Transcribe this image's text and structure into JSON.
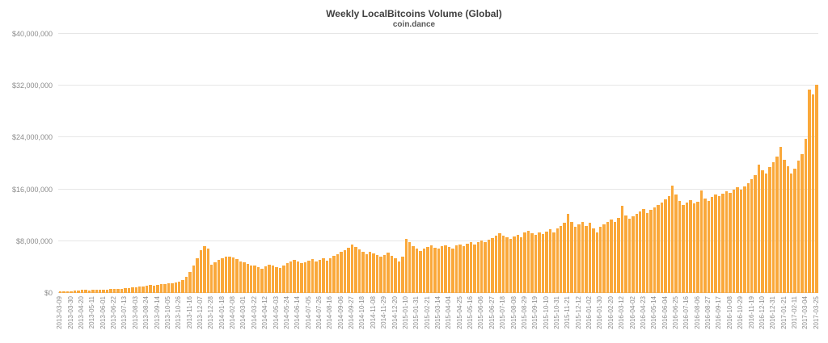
{
  "chart_data": {
    "type": "bar",
    "title": "Weekly LocalBitcoins Volume (Global)",
    "subtitle": "coin.dance",
    "xlabel": "",
    "ylabel": "",
    "ylim": [
      0,
      40000000
    ],
    "grid": true,
    "legend": false,
    "bar_color": "#FAA83A",
    "values_unit": "USD millions",
    "y_ticks": [
      "$0",
      "$8,000,000",
      "$16,000,000",
      "$24,000,000",
      "$32,000,000",
      "$40,000,000"
    ],
    "y_tick_values_millions": [
      0,
      8,
      16,
      24,
      32,
      40
    ],
    "x_tick_every": 3,
    "x_tick_labels": [
      "2013-03-09",
      "2013-03-30",
      "2013-04-20",
      "2013-05-11",
      "2013-06-01",
      "2013-06-22",
      "2013-07-13",
      "2013-08-03",
      "2013-08-24",
      "2013-09-14",
      "2013-10-05",
      "2013-10-26",
      "2013-11-16",
      "2013-12-07",
      "2013-12-28",
      "2014-01-18",
      "2014-02-08",
      "2014-03-01",
      "2014-03-22",
      "2014-04-12",
      "2014-05-03",
      "2014-05-24",
      "2014-06-14",
      "2014-07-05",
      "2014-07-26",
      "2014-08-16",
      "2014-09-06",
      "2014-09-27",
      "2014-10-18",
      "2014-11-08",
      "2014-11-29",
      "2014-12-20",
      "2015-01-10",
      "2015-01-31",
      "2015-02-21",
      "2015-03-14",
      "2015-04-04",
      "2015-04-25",
      "2015-05-16",
      "2015-06-06",
      "2015-06-27",
      "2015-07-18",
      "2015-08-08",
      "2015-08-29",
      "2015-09-19",
      "2015-10-10",
      "2015-10-31",
      "2015-11-21",
      "2015-12-12",
      "2016-01-02",
      "2016-01-30",
      "2016-02-20",
      "2016-03-12",
      "2016-04-02",
      "2016-04-23",
      "2016-05-14",
      "2016-06-04",
      "2016-06-25",
      "2016-07-16",
      "2016-08-06",
      "2016-08-27",
      "2016-09-17",
      "2016-10-08",
      "2016-10-29",
      "2016-11-19",
      "2016-12-10",
      "2016-12-31",
      "2017-01-21",
      "2017-02-11",
      "2017-03-04",
      "2017-03-25"
    ],
    "values_millions": [
      0.22,
      0.25,
      0.24,
      0.28,
      0.33,
      0.4,
      0.48,
      0.45,
      0.42,
      0.46,
      0.5,
      0.53,
      0.5,
      0.55,
      0.6,
      0.58,
      0.63,
      0.67,
      0.72,
      0.76,
      0.82,
      0.88,
      0.96,
      1.05,
      1.12,
      1.2,
      1.15,
      1.26,
      1.32,
      1.4,
      1.46,
      1.52,
      1.62,
      1.76,
      2.05,
      2.45,
      3.2,
      4.2,
      5.3,
      6.6,
      7.25,
      6.8,
      4.35,
      4.7,
      5.05,
      5.3,
      5.55,
      5.65,
      5.45,
      5.2,
      4.9,
      4.7,
      4.5,
      4.3,
      4.2,
      4.0,
      3.8,
      4.1,
      4.4,
      4.2,
      4.0,
      3.9,
      4.3,
      4.6,
      4.9,
      5.1,
      4.8,
      4.6,
      4.7,
      5.0,
      5.2,
      4.9,
      5.1,
      5.3,
      5.0,
      5.4,
      5.7,
      6.0,
      6.3,
      6.6,
      7.0,
      7.45,
      7.1,
      6.7,
      6.3,
      6.0,
      6.4,
      6.1,
      5.8,
      5.6,
      5.9,
      6.2,
      5.7,
      5.3,
      4.8,
      5.6,
      8.4,
      7.8,
      7.2,
      6.8,
      6.5,
      6.9,
      7.1,
      7.3,
      7.0,
      6.8,
      7.2,
      7.4,
      7.1,
      6.9,
      7.3,
      7.5,
      7.2,
      7.6,
      7.8,
      7.5,
      7.9,
      8.1,
      7.8,
      8.2,
      8.5,
      8.8,
      9.2,
      8.9,
      8.6,
      8.3,
      8.7,
      9.0,
      8.6,
      9.3,
      9.6,
      9.2,
      9.0,
      9.4,
      9.1,
      9.5,
      9.8,
      9.4,
      10.0,
      10.4,
      10.8,
      12.2,
      11.0,
      10.2,
      10.6,
      11.0,
      10.3,
      10.8,
      10.0,
      9.4,
      10.2,
      10.6,
      11.0,
      11.4,
      11.0,
      11.6,
      13.4,
      12.0,
      11.5,
      11.8,
      12.2,
      12.6,
      12.9,
      12.4,
      12.8,
      13.2,
      13.6,
      14.0,
      14.5,
      15.0,
      16.6,
      15.2,
      14.2,
      13.6,
      13.9,
      14.3,
      13.8,
      14.1,
      15.8,
      14.6,
      14.2,
      14.8,
      15.2,
      14.9,
      15.3,
      15.7,
      15.4,
      15.9,
      16.3,
      16.0,
      16.5,
      17.0,
      17.6,
      18.2,
      19.8,
      19.0,
      18.4,
      19.4,
      20.2,
      21.0,
      22.6,
      20.6,
      19.6,
      18.4,
      19.2,
      20.4,
      21.4,
      23.8,
      31.4,
      30.6,
      32.1
    ]
  }
}
